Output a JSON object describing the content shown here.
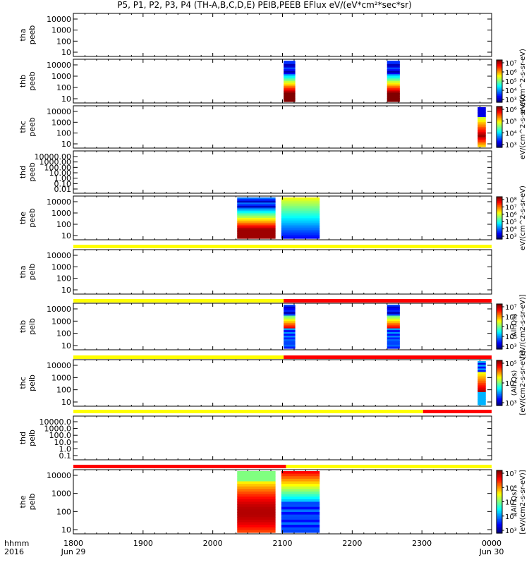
{
  "chart_data": {
    "type": "heatmap",
    "title": "P5, P1, P2, P3, P4 (TH-A,B,C,D,E) PEIB,PEEB EFlux eV/(eV*cm²*sec*sr)",
    "x_axis": {
      "corner_label": "hhmm",
      "corner_year": "2016",
      "ticks": [
        "1800",
        "1900",
        "2000",
        "2100",
        "2200",
        "2300",
        "0000"
      ],
      "date_labels": [
        "Jun 29",
        "Jun 30"
      ],
      "range_hhmm": [
        "1800",
        "0000"
      ]
    },
    "colors": {
      "bar_yellow": "#ffff00",
      "bar_red": "#ff0000",
      "frame": "#000000"
    },
    "colorbar_labels": {
      "peeb": "eV/(cm^2-s-sr-eV)",
      "peib_line1": "[eV/(cm2-s-sr-eV)]",
      "peib_line2": "(All Qs)"
    },
    "panels": [
      {
        "id": "tha-peeb",
        "label_line1": "tha",
        "label_line2": "peeb",
        "y_scale": "log",
        "y_ticks": [
          "10",
          "100",
          "1000",
          "10000"
        ],
        "colorbar_ticks": [],
        "mode_bar_above": [],
        "blocks": []
      },
      {
        "id": "thb-peeb",
        "label_line1": "thb",
        "label_line2": "peeb",
        "y_scale": "log",
        "y_ticks": [
          "10",
          "100",
          "1000",
          "10000"
        ],
        "colorbar_ticks": [
          "10³",
          "10⁴",
          "10⁵",
          "10⁶",
          "10⁷"
        ],
        "mode_bar_above": [],
        "blocks": [
          {
            "start": "2101",
            "end": "2111",
            "profile": "peeb-thb"
          },
          {
            "start": "2230",
            "end": "2241",
            "profile": "peeb-thb"
          }
        ]
      },
      {
        "id": "thc-peeb",
        "label_line1": "thc",
        "label_line2": "peeb",
        "y_scale": "log",
        "y_ticks": [
          "10",
          "100",
          "1000",
          "10000"
        ],
        "colorbar_ticks": [
          "10³",
          "10⁴",
          "10⁵",
          "10⁶"
        ],
        "mode_bar_above": [],
        "blocks": [
          {
            "start": "2348",
            "end": "2355",
            "profile": "peeb-thc"
          }
        ]
      },
      {
        "id": "thd-peeb",
        "label_line1": "thd",
        "label_line2": "peeb",
        "y_scale": "log",
        "y_ticks": [
          "0.01",
          "0.10",
          "1.00",
          "10.00",
          "100.00",
          "1000.00",
          "10000.00"
        ],
        "colorbar_ticks": [],
        "mode_bar_above": [],
        "blocks": []
      },
      {
        "id": "the-peeb",
        "label_line1": "the",
        "label_line2": "peeb",
        "y_scale": "log",
        "y_ticks": [
          "10",
          "100",
          "1000",
          "10000"
        ],
        "colorbar_ticks": [
          "10³",
          "10⁴",
          "10⁵",
          "10⁶",
          "10⁷",
          "10⁸"
        ],
        "mode_bar_above": [],
        "blocks": [
          {
            "start": "2021",
            "end": "2054",
            "profile": "peeb-the-a"
          },
          {
            "start": "2059",
            "end": "2092",
            "profile": "peeb-the-b"
          }
        ]
      },
      {
        "id": "tha-peib",
        "label_line1": "tha",
        "label_line2": "peib",
        "y_scale": "log",
        "y_ticks": [
          "10",
          "100",
          "1000",
          "10000"
        ],
        "colorbar_ticks": [],
        "mode_bar_above": [
          {
            "start": "1800",
            "end": "0000",
            "mode": "yellow"
          }
        ],
        "blocks": []
      },
      {
        "id": "thb-peib",
        "label_line1": "thb",
        "label_line2": "peib",
        "y_scale": "log",
        "y_ticks": [
          "10",
          "100",
          "1000",
          "10000"
        ],
        "colorbar_ticks": [
          "10³",
          "10⁴",
          "10⁵",
          "10⁶",
          "10⁷"
        ],
        "mode_bar_above": [
          {
            "start": "1800",
            "end": "2101",
            "mode": "yellow"
          },
          {
            "start": "2101",
            "end": "0000",
            "mode": "red"
          }
        ],
        "blocks": [
          {
            "start": "2101",
            "end": "2111",
            "profile": "peib-thb"
          },
          {
            "start": "2230",
            "end": "2241",
            "profile": "peib-thb"
          }
        ]
      },
      {
        "id": "thc-peib",
        "label_line1": "thc",
        "label_line2": "peib",
        "y_scale": "log",
        "y_ticks": [
          "10",
          "100",
          "1000",
          "10000"
        ],
        "colorbar_ticks": [
          "10³",
          "10⁴",
          "10⁵"
        ],
        "mode_bar_above": [
          {
            "start": "1800",
            "end": "2101",
            "mode": "yellow"
          },
          {
            "start": "2101",
            "end": "0000",
            "mode": "red"
          }
        ],
        "blocks": [
          {
            "start": "2348",
            "end": "2355",
            "profile": "peib-thc"
          }
        ]
      },
      {
        "id": "thd-peib",
        "label_line1": "thd",
        "label_line2": "peib",
        "y_scale": "log",
        "y_ticks": [
          "0.1",
          "1.0",
          "10.0",
          "100.0",
          "1000.0",
          "10000.0"
        ],
        "colorbar_ticks": [],
        "mode_bar_above": [
          {
            "start": "1800",
            "end": "2301",
            "mode": "yellow"
          },
          {
            "start": "2301",
            "end": "0000",
            "mode": "red"
          }
        ],
        "blocks": []
      },
      {
        "id": "the-peib",
        "label_line1": "the",
        "label_line2": "peib",
        "y_scale": "log",
        "y_ticks": [
          "10",
          "100",
          "1000",
          "10000"
        ],
        "colorbar_ticks": [
          "10³",
          "10⁴",
          "10⁵",
          "10⁶",
          "10⁷"
        ],
        "mode_bar_above": [
          {
            "start": "1800",
            "end": "2103",
            "mode": "red"
          },
          {
            "start": "2103",
            "end": "0000",
            "mode": "yellow"
          }
        ],
        "blocks": [
          {
            "start": "2021",
            "end": "2054",
            "profile": "peib-the-a"
          },
          {
            "start": "2059",
            "end": "2092",
            "profile": "peib-the-b"
          }
        ]
      }
    ]
  }
}
